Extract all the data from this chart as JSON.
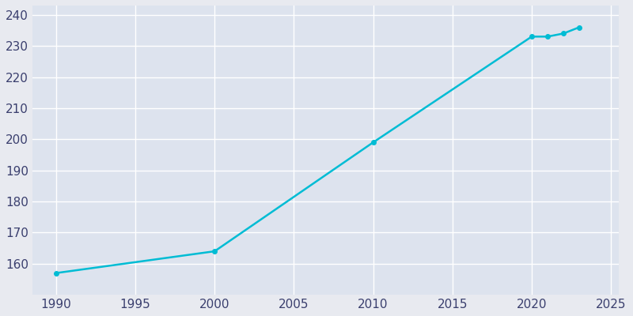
{
  "years": [
    1990,
    2000,
    2010,
    2020,
    2021,
    2022,
    2023
  ],
  "population": [
    157,
    164,
    199,
    233,
    233,
    234,
    236
  ],
  "line_color": "#00bcd4",
  "marker": "o",
  "marker_size": 4,
  "line_width": 1.8,
  "bg_color": "#e8eaf0",
  "plot_bg_color": "#dde3ee",
  "grid_color": "#ffffff",
  "tick_color": "#3a3f6e",
  "xticks": [
    1990,
    1995,
    2000,
    2005,
    2010,
    2015,
    2020,
    2025
  ],
  "yticks": [
    160,
    170,
    180,
    190,
    200,
    210,
    220,
    230,
    240
  ],
  "xlim": [
    1988.5,
    2025.5
  ],
  "ylim": [
    150,
    243
  ],
  "tick_fontsize": 11
}
